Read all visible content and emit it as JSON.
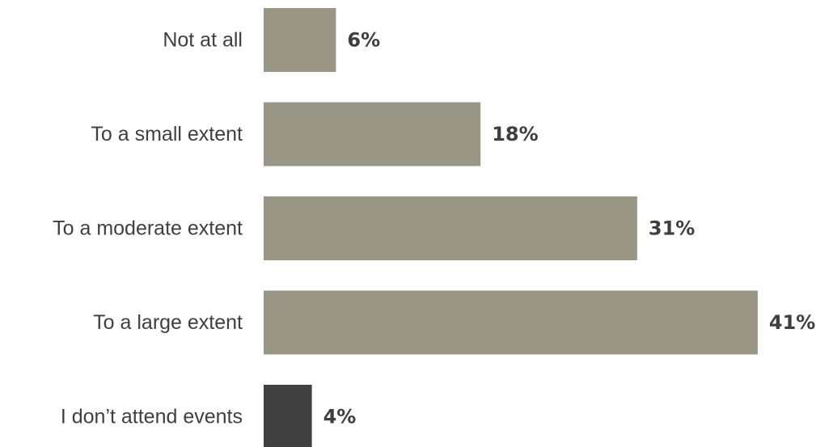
{
  "chart_data": {
    "type": "bar",
    "orientation": "horizontal",
    "categories": [
      "Not at all",
      "To a small extent",
      "To a moderate extent",
      "To a large extent",
      "I don’t attend events"
    ],
    "values": [
      6,
      18,
      31,
      41,
      4
    ],
    "value_labels": [
      "6%",
      "18%",
      "31%",
      "41%",
      "4%"
    ],
    "bar_colors": [
      "#999686",
      "#999686",
      "#999686",
      "#999686",
      "#404040"
    ],
    "value_unit": "%",
    "xlim": [
      0,
      41
    ],
    "grid": false,
    "legend": "none"
  }
}
